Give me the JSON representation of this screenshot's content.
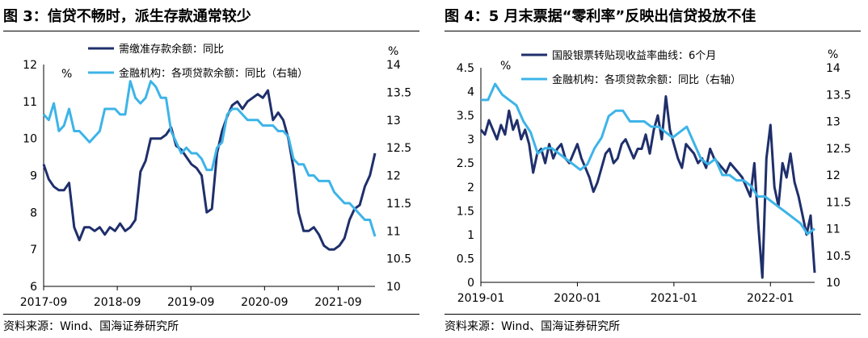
{
  "panels": [
    {
      "title": "图 3：信贷不畅时，派生存款通常较少",
      "source": "资料来源：Wind、国海证券研究所"
    },
    {
      "title": "图 4：5 月末票据“零利率”反映出信贷投放不佳",
      "source": "资料来源：Wind、国海证券研究所"
    }
  ],
  "colors": {
    "dark": "#1f2f6b",
    "light": "#3db4e8"
  },
  "chart_data": [
    {
      "type": "line",
      "title": "图 3：信贷不畅时，派生存款通常较少",
      "left_unit": "%",
      "right_unit": "%",
      "ylim_left": [
        6,
        12
      ],
      "ylim_right": [
        10,
        14
      ],
      "left_ticks": [
        "6",
        "7",
        "8",
        "9",
        "10",
        "11",
        "12"
      ],
      "right_ticks": [
        "10",
        "10.5",
        "11",
        "11.5",
        "12",
        "12.5",
        "13",
        "13.5",
        "14"
      ],
      "x_ticks": [
        "2017-09",
        "2018-09",
        "2019-09",
        "2020-09",
        "2021-09"
      ],
      "x_start": "2017-09",
      "series": [
        {
          "name": "需缴准存款余额：同比",
          "axis": "left",
          "values": [
            9.3,
            8.9,
            8.7,
            8.6,
            8.6,
            8.8,
            7.6,
            7.25,
            7.6,
            7.6,
            7.5,
            7.6,
            7.4,
            7.6,
            7.5,
            7.7,
            7.5,
            7.6,
            7.8,
            9.1,
            9.4,
            10.0,
            10.0,
            10.0,
            10.1,
            10.3,
            9.8,
            9.7,
            9.5,
            9.3,
            9.2,
            9.0,
            8.0,
            8.1,
            9.6,
            10.2,
            10.6,
            10.9,
            11.0,
            10.8,
            11.0,
            11.1,
            11.2,
            11.1,
            11.3,
            10.5,
            10.7,
            10.5,
            10.0,
            9.2,
            8.0,
            7.5,
            7.5,
            7.6,
            7.4,
            7.1,
            7.0,
            7.0,
            7.1,
            7.3,
            7.8,
            8.1,
            8.2,
            8.7,
            9.0,
            9.6
          ]
        },
        {
          "name": "金融机构：各项贷款余额：同比（右轴）",
          "axis": "right",
          "values": [
            13.1,
            13.0,
            13.3,
            12.8,
            12.9,
            13.2,
            12.8,
            12.8,
            12.7,
            12.6,
            12.7,
            12.8,
            13.2,
            13.2,
            13.2,
            13.1,
            13.1,
            13.7,
            13.4,
            13.3,
            13.4,
            13.7,
            13.6,
            13.4,
            13.4,
            12.8,
            12.6,
            12.4,
            12.5,
            12.4,
            12.4,
            12.3,
            12.1,
            12.1,
            12.5,
            12.6,
            13.1,
            13.2,
            13.2,
            13.1,
            13.0,
            13.0,
            13.0,
            12.9,
            12.9,
            12.9,
            12.8,
            12.8,
            12.7,
            12.3,
            12.2,
            12.2,
            12.0,
            12.0,
            11.9,
            11.9,
            11.9,
            11.7,
            11.6,
            11.5,
            11.5,
            11.4,
            11.3,
            11.2,
            11.2,
            10.9
          ]
        }
      ]
    },
    {
      "type": "line",
      "title": "图 4：5 月末票据“零利率”反映出信贷投放不佳",
      "left_unit": "",
      "right_unit": "%",
      "left_unit_inside": "%",
      "ylim_left": [
        0,
        4.5
      ],
      "ylim_right": [
        10,
        14
      ],
      "left_ticks": [
        "0",
        "0.5",
        "1",
        "1.5",
        "2",
        "2.5",
        "3",
        "3.5",
        "4",
        "4.5"
      ],
      "right_ticks": [
        "10",
        "10.5",
        "11",
        "11.5",
        "12",
        "12.5",
        "13",
        "13.5",
        "14"
      ],
      "x_ticks": [
        "2019-01",
        "2020-01",
        "2021-01",
        "2022-01"
      ],
      "x_start": "2019-01",
      "series": [
        {
          "name": "国股银票转贴现收益率曲线：6个月",
          "axis": "left",
          "x_months": [
            0,
            0.5,
            1,
            1.5,
            2,
            2.5,
            3,
            3.5,
            4,
            4.5,
            5,
            5.5,
            6,
            6.5,
            7,
            7.5,
            8,
            8.5,
            9,
            9.5,
            10,
            10.5,
            11,
            11.5,
            12,
            12.5,
            13,
            13.5,
            14,
            14.5,
            15,
            15.5,
            16,
            16.5,
            17,
            17.5,
            18,
            18.5,
            19,
            19.5,
            20,
            20.5,
            21,
            21.5,
            22,
            22.5,
            23,
            23.5,
            24,
            24.5,
            25,
            25.5,
            26,
            26.5,
            27,
            27.5,
            28,
            28.5,
            29,
            29.5,
            30,
            30.5,
            31,
            31.5,
            32,
            32.5,
            33,
            33.5,
            34,
            34.5,
            35,
            35.5,
            36,
            36.5,
            37,
            37.5,
            38,
            38.5,
            39,
            39.5,
            40,
            40.5,
            41,
            41.5
          ],
          "values": [
            3.2,
            3.1,
            3.4,
            3.2,
            3.0,
            3.3,
            3.1,
            3.6,
            3.2,
            3.4,
            3.0,
            3.2,
            2.9,
            2.3,
            2.7,
            2.8,
            2.5,
            2.9,
            2.6,
            2.8,
            2.9,
            2.6,
            2.5,
            2.7,
            2.9,
            2.6,
            2.4,
            2.2,
            1.9,
            2.1,
            2.4,
            2.7,
            2.8,
            2.5,
            2.6,
            2.9,
            3.0,
            2.8,
            2.6,
            2.8,
            2.8,
            3.1,
            2.7,
            3.2,
            3.5,
            3.0,
            3.9,
            3.2,
            2.9,
            2.6,
            2.4,
            2.9,
            2.8,
            2.7,
            2.5,
            2.6,
            2.4,
            2.8,
            2.6,
            2.5,
            2.4,
            2.3,
            2.5,
            2.4,
            2.3,
            2.2,
            2.0,
            1.8,
            2.5,
            1.2,
            0.1,
            2.6,
            3.3,
            2.0,
            1.6,
            2.5,
            2.2,
            2.7,
            2.1,
            1.8,
            1.4,
            1.0,
            1.4,
            0.2
          ]
        },
        {
          "name": "金融机构：各项贷款余额：同比（右轴）",
          "axis": "right",
          "values": [
            13.4,
            13.4,
            13.7,
            13.5,
            13.4,
            13.3,
            13.0,
            12.8,
            12.4,
            12.5,
            12.5,
            12.4,
            12.3,
            12.2,
            12.1,
            12.2,
            12.5,
            12.7,
            13.1,
            13.2,
            13.2,
            13.0,
            13.0,
            13.0,
            12.9,
            12.9,
            12.8,
            12.7,
            12.8,
            12.9,
            12.6,
            12.3,
            12.2,
            12.3,
            12.0,
            12.0,
            11.9,
            11.9,
            11.8,
            11.6,
            11.6,
            11.5,
            11.4,
            11.3,
            11.2,
            11.1,
            10.9,
            11.0
          ]
        }
      ]
    }
  ]
}
